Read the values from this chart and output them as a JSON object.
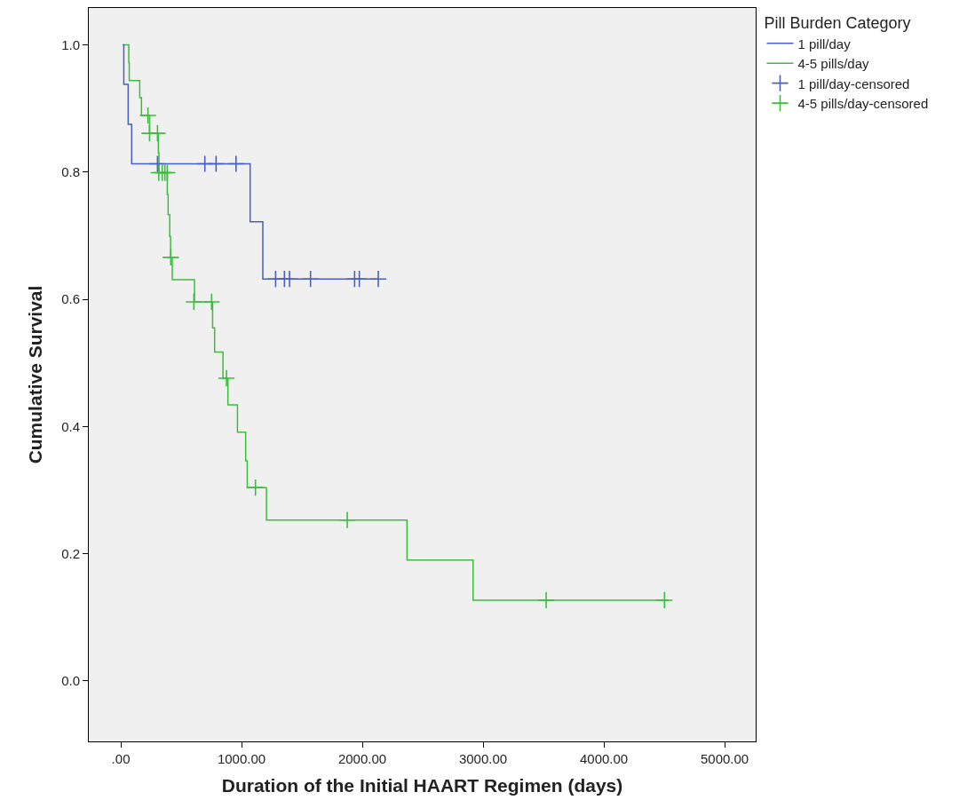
{
  "chart_data": {
    "type": "step",
    "xlabel": "Duration of the Initial HAART Regimen (days)",
    "ylabel": "Cumulative Survival",
    "legend_title": "Pill Burden Category",
    "xlim": [
      -265,
      5257
    ],
    "ylim": [
      -0.095,
      1.058
    ],
    "xticks": [
      {
        "value": 0,
        "label": ".00"
      },
      {
        "value": 1000,
        "label": "1000.00"
      },
      {
        "value": 2000,
        "label": "2000.00"
      },
      {
        "value": 3000,
        "label": "3000.00"
      },
      {
        "value": 4000,
        "label": "4000.00"
      },
      {
        "value": 5000,
        "label": "5000.00"
      }
    ],
    "yticks": [
      {
        "value": 0,
        "label": "0.0"
      },
      0.2,
      0.4,
      0.6,
      0.8,
      {
        "value": 1,
        "label": "1.0"
      }
    ],
    "grid": false,
    "legend": "right",
    "series": [
      {
        "name": "1 pill/day",
        "color": "#4a5fbf",
        "x": [
          15,
          25,
          61,
          90,
          1071,
          1176,
          2132
        ],
        "values": [
          1.0,
          0.938,
          0.875,
          0.813,
          0.722,
          0.632,
          0.632
        ]
      },
      {
        "name": "4-5 pills/day",
        "color": "#3dbd3d",
        "x": [
          29,
          66,
          70,
          157,
          171,
          238,
          311,
          316,
          385,
          392,
          405,
          412,
          426,
          610,
          760,
          777,
          846,
          887,
          966,
          1034,
          1047,
          1206,
          2370,
          2917,
          4537
        ],
        "values": [
          1.0,
          0.972,
          0.944,
          0.917,
          0.889,
          0.861,
          0.83,
          0.799,
          0.765,
          0.733,
          0.699,
          0.666,
          0.631,
          0.596,
          0.555,
          0.517,
          0.476,
          0.434,
          0.391,
          0.346,
          0.304,
          0.253,
          0.19,
          0.127,
          0.127
        ]
      },
      {
        "name": "1 pill/day-censored",
        "type": "scatter",
        "marker": "cross",
        "color": "#4a5fbf",
        "x": [
          304,
          696,
          789,
          954,
          1282,
          1355,
          1397,
          1571,
          1936,
          1975,
          2132
        ],
        "values": [
          0.813,
          0.813,
          0.813,
          0.813,
          0.632,
          0.632,
          0.632,
          0.632,
          0.632,
          0.632,
          0.632
        ]
      },
      {
        "name": "4-5 pills/day-censored",
        "type": "scatter",
        "marker": "cross",
        "color": "#3dbd3d",
        "x": [
          225,
          238,
          304,
          314,
          343,
          365,
          385,
          414,
          605,
          752,
          875,
          1115,
          1875,
          3522,
          4502
        ],
        "values": [
          0.889,
          0.861,
          0.861,
          0.799,
          0.799,
          0.799,
          0.799,
          0.666,
          0.596,
          0.596,
          0.476,
          0.304,
          0.253,
          0.127,
          0.127
        ]
      }
    ]
  }
}
